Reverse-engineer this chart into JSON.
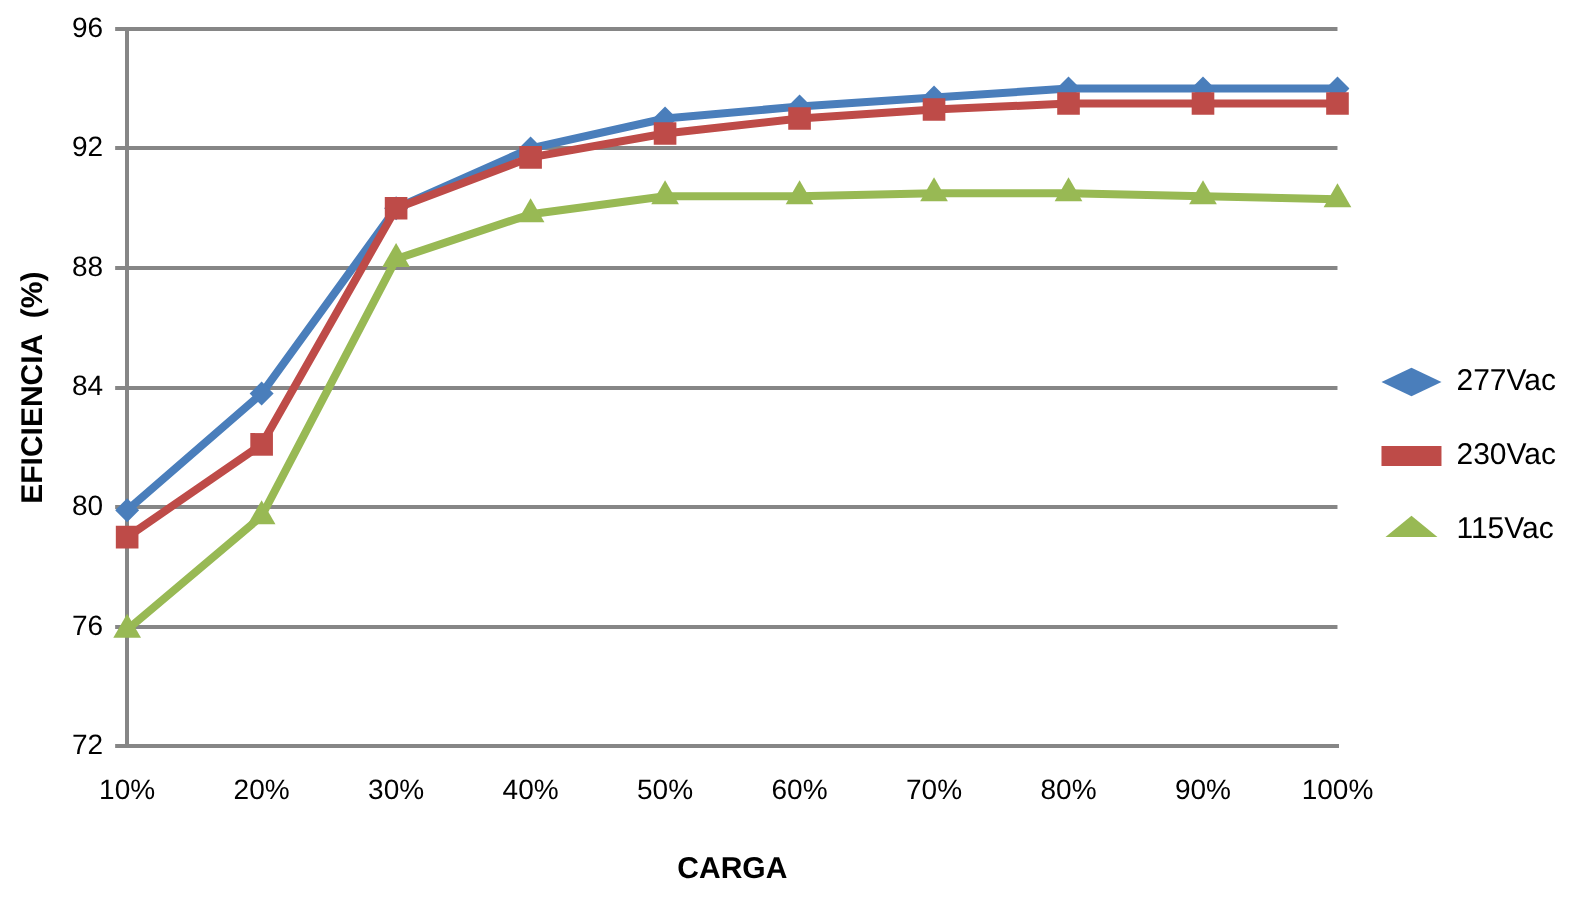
{
  "chart_data": {
    "type": "line",
    "xlabel": "CARGA",
    "ylabel": "EFICIENCIA  (%)",
    "categories": [
      "10%",
      "20%",
      "30%",
      "40%",
      "50%",
      "60%",
      "70%",
      "80%",
      "90%",
      "100%"
    ],
    "series": [
      {
        "name": "277Vac",
        "color": "#4a7ebb",
        "marker": "diamond",
        "values": [
          79.9,
          83.8,
          90.0,
          92.0,
          93.0,
          93.4,
          93.7,
          94.0,
          94.0,
          94.0
        ]
      },
      {
        "name": "230Vac",
        "color": "#be4b48",
        "marker": "square",
        "values": [
          79.0,
          82.1,
          90.0,
          91.7,
          92.5,
          93.0,
          93.3,
          93.5,
          93.5,
          93.5
        ]
      },
      {
        "name": "115Vac",
        "color": "#98b954",
        "marker": "triangle",
        "values": [
          75.9,
          79.7,
          88.3,
          89.8,
          90.4,
          90.4,
          90.5,
          90.5,
          90.4,
          90.3
        ]
      }
    ],
    "ylim": [
      72,
      96
    ],
    "yticks": [
      72,
      76,
      80,
      84,
      88,
      92,
      96
    ],
    "grid": "y",
    "legend": "right",
    "line_style": "solid"
  }
}
